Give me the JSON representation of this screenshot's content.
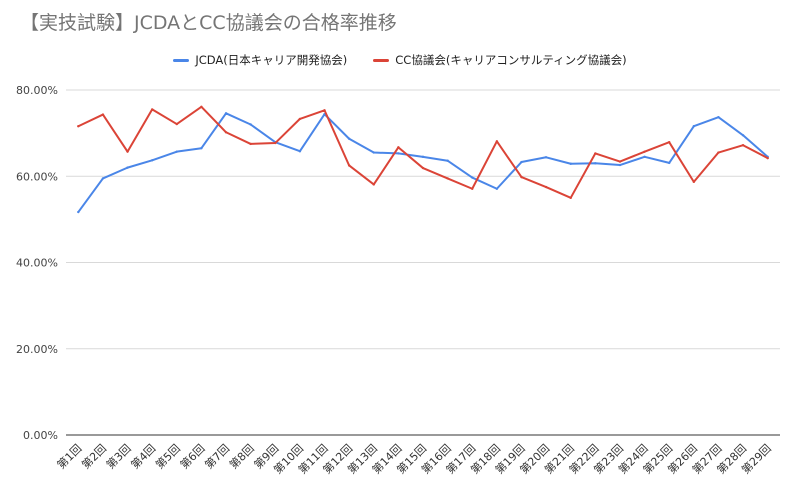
{
  "chart_data": {
    "type": "line",
    "title": "【実技試験】JCDAとCC協議会の合格率推移",
    "xlabel": "",
    "ylabel": "",
    "ylim": [
      0,
      0.8
    ],
    "yticks": [
      "0.00%",
      "20.00%",
      "40.00%",
      "60.00%",
      "80.00%"
    ],
    "grid": "horizontal",
    "legend_position": "top",
    "categories": [
      "第1回",
      "第2回",
      "第3回",
      "第4回",
      "第5回",
      "第6回",
      "第7回",
      "第8回",
      "第9回",
      "第10回",
      "第11回",
      "第12回",
      "第13回",
      "第14回",
      "第15回",
      "第16回",
      "第17回",
      "第18回",
      "第19回",
      "第20回",
      "第21回",
      "第22回",
      "第23回",
      "第24回",
      "第25回",
      "第26回",
      "第27回",
      "第28回",
      "第29回"
    ],
    "series": [
      {
        "name": "JCDA(日本キャリア開発協会)",
        "color": "#4a86e8",
        "values": [
          0.517,
          0.595,
          0.62,
          0.637,
          0.657,
          0.665,
          0.746,
          0.72,
          0.679,
          0.658,
          0.744,
          0.687,
          0.655,
          0.653,
          0.645,
          0.636,
          0.597,
          0.571,
          0.633,
          0.644,
          0.629,
          0.63,
          0.626,
          0.645,
          0.631,
          0.716,
          0.737,
          0.695,
          0.645
        ]
      },
      {
        "name": "CC協議会(キャリアコンサルティング協議会)",
        "color": "#db4437",
        "values": [
          0.716,
          0.743,
          0.657,
          0.755,
          0.721,
          0.761,
          0.702,
          0.675,
          0.677,
          0.733,
          0.753,
          0.625,
          0.581,
          0.667,
          0.619,
          0.595,
          0.571,
          0.681,
          0.598,
          0.575,
          0.55,
          0.653,
          0.634,
          0.657,
          0.679,
          0.587,
          0.655,
          0.672,
          0.642
        ]
      }
    ]
  }
}
